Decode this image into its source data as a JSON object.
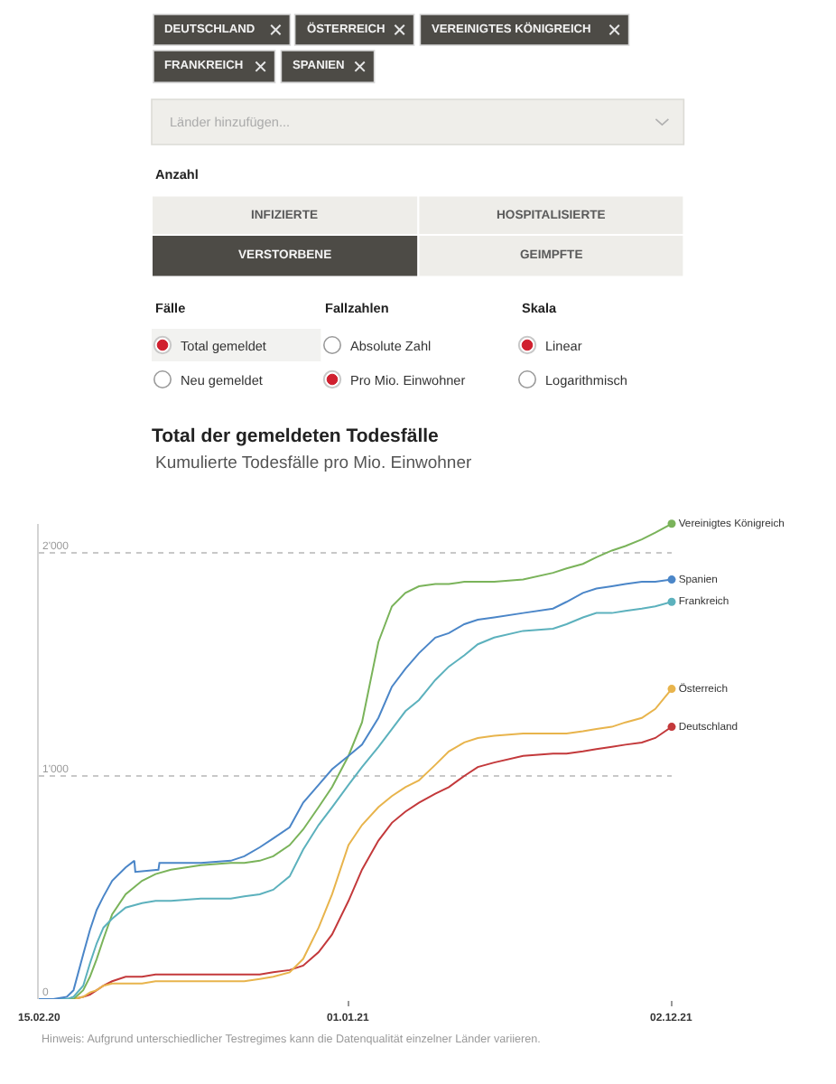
{
  "chart_data": {
    "type": "line",
    "title": "Total der gemeldeten Todesfälle",
    "subtitle": "Kumulierte Todesfälle pro Mio. Einwohner",
    "annotations": [
      "DEUTSCHLAND",
      "ÖSTERREICH",
      "VEREINIGTES KÖNIGREICH",
      "FRANKREICH",
      "SPANIEN",
      "Länder hinzufügen...",
      "Anzahl",
      "INFIZIERTE",
      "HOSPITALISIERTE",
      "VERSTORBENE",
      "GEIMPFTE",
      "Fälle",
      "Fallzahlen",
      "Skala",
      "Total gemeldet",
      "Absolute Zahl",
      "Linear",
      "Neu gemeldet",
      "Pro Mio. Einwohner",
      "Logarithmisch",
      "Hinweis: Aufgrund unterschiedlicher Testregimes kann die Datenqualität einzelner Länder variieren."
    ],
    "x": [
      "2020-02-15",
      "2020-03-01",
      "2020-03-15",
      "2020-03-22",
      "2020-04-01",
      "2020-04-08",
      "2020-04-15",
      "2020-04-22",
      "2020-05-01",
      "2020-05-15",
      "2020-06-01",
      "2020-06-15",
      "2020-07-01",
      "2020-08-01",
      "2020-09-01",
      "2020-09-15",
      "2020-10-01",
      "2020-10-15",
      "2020-11-01",
      "2020-11-15",
      "2020-12-01",
      "2020-12-15",
      "2021-01-01",
      "2021-01-15",
      "2021-02-01",
      "2021-02-15",
      "2021-03-01",
      "2021-03-15",
      "2021-04-01",
      "2021-04-15",
      "2021-05-01",
      "2021-05-15",
      "2021-06-01",
      "2021-07-01",
      "2021-08-01",
      "2021-08-15",
      "2021-09-01",
      "2021-09-15",
      "2021-10-01",
      "2021-10-15",
      "2021-11-01",
      "2021-11-15",
      "2021-12-02"
    ],
    "series": [
      {
        "name": "Deutschland",
        "color": "#c3393b",
        "values": [
          null,
          null,
          0,
          0,
          10,
          20,
          40,
          60,
          80,
          100,
          100,
          110,
          110,
          110,
          110,
          110,
          110,
          120,
          130,
          150,
          210,
          290,
          440,
          580,
          710,
          790,
          840,
          880,
          920,
          950,
          1000,
          1040,
          1060,
          1090,
          1100,
          1100,
          1110,
          1120,
          1130,
          1140,
          1150,
          1170,
          1220
        ]
      },
      {
        "name": "Österreich",
        "color": "#e8b44c",
        "values": [
          null,
          null,
          0,
          0,
          10,
          30,
          40,
          60,
          70,
          70,
          70,
          80,
          80,
          80,
          80,
          80,
          90,
          100,
          120,
          180,
          320,
          470,
          690,
          780,
          860,
          910,
          950,
          980,
          1050,
          1110,
          1150,
          1170,
          1180,
          1190,
          1190,
          1190,
          1200,
          1210,
          1220,
          1240,
          1260,
          1300,
          1390
        ]
      },
      {
        "name": "Vereinigtes Königreich",
        "color": "#7ab35a",
        "values": [
          0,
          0,
          0,
          0,
          40,
          100,
          180,
          270,
          380,
          470,
          530,
          560,
          580,
          600,
          610,
          610,
          620,
          640,
          690,
          760,
          860,
          950,
          1090,
          1240,
          1600,
          1760,
          1820,
          1850,
          1860,
          1860,
          1870,
          1870,
          1870,
          1880,
          1910,
          1930,
          1950,
          1980,
          2010,
          2030,
          2060,
          2090,
          2130
        ]
      },
      {
        "name": "Frankreich",
        "color": "#5cb1bd",
        "values": [
          0,
          0,
          0,
          10,
          60,
          160,
          250,
          320,
          360,
          410,
          430,
          440,
          440,
          450,
          450,
          460,
          470,
          490,
          550,
          670,
          780,
          860,
          960,
          1040,
          1130,
          1210,
          1290,
          1340,
          1430,
          1490,
          1540,
          1590,
          1620,
          1650,
          1660,
          1680,
          1710,
          1730,
          1730,
          1740,
          1750,
          1760,
          1780
        ]
      },
      {
        "name": "Spanien",
        "color": "#4b86c8",
        "x": [
          "2020-02-15",
          "2020-03-01",
          "2020-03-15",
          "2020-03-22",
          "2020-04-01",
          "2020-04-08",
          "2020-04-15",
          "2020-04-22",
          "2020-05-01",
          "2020-05-15",
          "2020-05-24",
          "2020-05-25",
          "2020-06-18",
          "2020-06-19",
          "2020-07-01",
          "2020-08-01",
          "2020-09-01",
          "2020-09-15",
          "2020-10-01",
          "2020-10-15",
          "2020-11-01",
          "2020-11-15",
          "2020-12-01",
          "2020-12-15",
          "2021-01-01",
          "2021-01-15",
          "2021-02-01",
          "2021-02-15",
          "2021-03-01",
          "2021-03-15",
          "2021-04-01",
          "2021-04-15",
          "2021-05-01",
          "2021-05-15",
          "2021-06-01",
          "2021-07-01",
          "2021-08-01",
          "2021-08-15",
          "2021-09-01",
          "2021-09-15",
          "2021-10-01",
          "2021-10-15",
          "2021-11-01",
          "2021-11-15",
          "2021-12-02"
        ],
        "values": [
          0,
          0,
          10,
          40,
          200,
          310,
          400,
          460,
          530,
          590,
          620,
          570,
          580,
          610,
          610,
          610,
          620,
          640,
          680,
          720,
          770,
          880,
          960,
          1030,
          1090,
          1140,
          1260,
          1400,
          1480,
          1550,
          1620,
          1640,
          1680,
          1700,
          1710,
          1730,
          1750,
          1780,
          1820,
          1840,
          1850,
          1860,
          1870,
          1870,
          1880
        ]
      }
    ],
    "xlim": [
      "2020-02-15",
      "2021-12-02"
    ],
    "xticks": [
      {
        "value": "2020-02-15",
        "label": "15.02.20"
      },
      {
        "value": "2021-01-01",
        "label": "01.01.21"
      },
      {
        "value": "2021-12-02",
        "label": "02.12.21"
      }
    ],
    "ylim": [
      0,
      2130
    ],
    "yticks": [
      0,
      {
        "value": 1000,
        "label": "1'000"
      },
      {
        "value": 2000,
        "label": "2'000"
      }
    ],
    "grid": "y",
    "legend": false
  }
}
